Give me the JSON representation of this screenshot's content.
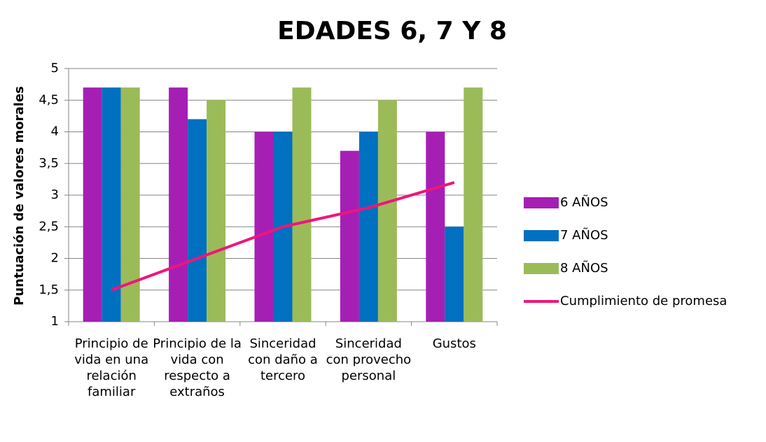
{
  "chart_data": {
    "type": "bar",
    "title": "EDADES 6, 7 Y 8",
    "y_label": "Puntuación de valores morales",
    "categories": [
      "Principio de vida en una relación familiar",
      "Principio de la vida con respecto a extraños",
      "Sinceridad con daño a tercero",
      "Sinceridad con provecho personal",
      "Gustos"
    ],
    "series": [
      {
        "name": "6 AÑOS",
        "color": "#a51fb5",
        "values": [
          4.7,
          4.7,
          4,
          3.7,
          4
        ]
      },
      {
        "name": "7 AÑOS",
        "color": "#0070c0",
        "values": [
          4.7,
          4.2,
          4,
          4,
          2.5
        ]
      },
      {
        "name": "8 AÑOS",
        "color": "#9bbb59",
        "values": [
          4.7,
          4.5,
          4.7,
          4.5,
          4.7
        ]
      },
      {
        "name": "Cumplimiento de promesa",
        "color": "#f0157a",
        "type": "line",
        "values": [
          1.5,
          2.0,
          2.5,
          2.8,
          3.2
        ]
      }
    ],
    "ylim": [
      1,
      5
    ],
    "yticks": [
      1,
      {
        "value": 1.5,
        "label": "1,5"
      },
      2,
      {
        "value": 2.5,
        "label": "2,5"
      },
      3,
      {
        "value": 3.5,
        "label": "3,5"
      },
      4,
      {
        "value": 4.5,
        "label": "4,5"
      },
      5
    ],
    "grid": true,
    "legend": "right"
  }
}
